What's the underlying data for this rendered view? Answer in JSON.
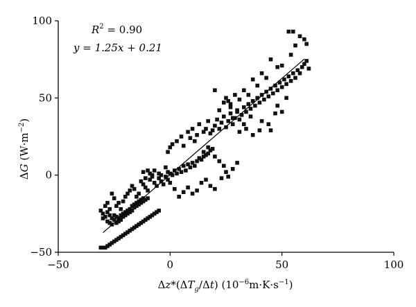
{
  "chart_data": {
    "type": "scatter",
    "xlabel": "Δz*(ΔT_g/Δt) (10^-6m·K·s^-1)",
    "ylabel": "ΔG (W·m^-2)",
    "xlim": [
      -50,
      100
    ],
    "ylim": [
      -50,
      100
    ],
    "x_ticks": [
      "−50",
      "0",
      "50",
      "100"
    ],
    "y_ticks": [
      "−50",
      "0",
      "50",
      "100"
    ],
    "grid": false,
    "annotations": {
      "r2_label": "R",
      "r2_sup": "2",
      "r2_value": " = 0.90",
      "equation": "y = 1.25x + 0.21"
    },
    "fit_line": {
      "slope": 1.25,
      "intercept": 0.21,
      "x_range": [
        -30,
        60
      ]
    },
    "points": [
      [
        -31,
        -47
      ],
      [
        -30,
        -47
      ],
      [
        -29,
        -47
      ],
      [
        -28,
        -46
      ],
      [
        -27,
        -45
      ],
      [
        -26,
        -44
      ],
      [
        -25,
        -43
      ],
      [
        -24,
        -42
      ],
      [
        -23,
        -41
      ],
      [
        -22,
        -40
      ],
      [
        -21,
        -39
      ],
      [
        -20,
        -38
      ],
      [
        -19,
        -37
      ],
      [
        -18,
        -36
      ],
      [
        -17,
        -35
      ],
      [
        -16,
        -34
      ],
      [
        -15,
        -33
      ],
      [
        -14,
        -32
      ],
      [
        -13,
        -31
      ],
      [
        -12,
        -30
      ],
      [
        -11,
        -29
      ],
      [
        -10,
        -28
      ],
      [
        -9,
        -27
      ],
      [
        -8,
        -26
      ],
      [
        -7,
        -25
      ],
      [
        -6,
        -24
      ],
      [
        -5,
        -23
      ],
      [
        -31,
        -23
      ],
      [
        -30,
        -25
      ],
      [
        -30,
        -28
      ],
      [
        -29,
        -27
      ],
      [
        -28,
        -24
      ],
      [
        -28,
        -30
      ],
      [
        -27,
        -26
      ],
      [
        -27,
        -31
      ],
      [
        -26,
        -28
      ],
      [
        -26,
        -32
      ],
      [
        -25,
        -29
      ],
      [
        -25,
        -26
      ],
      [
        -24,
        -31
      ],
      [
        -24,
        -27
      ],
      [
        -23,
        -30
      ],
      [
        -23,
        -28
      ],
      [
        -22,
        -26
      ],
      [
        -22,
        -29
      ],
      [
        -21,
        -25
      ],
      [
        -21,
        -27
      ],
      [
        -20,
        -24
      ],
      [
        -20,
        -26
      ],
      [
        -19,
        -23
      ],
      [
        -19,
        -25
      ],
      [
        -18,
        -22
      ],
      [
        -18,
        -24
      ],
      [
        -17,
        -20
      ],
      [
        -17,
        -23
      ],
      [
        -16,
        -21
      ],
      [
        -16,
        -19
      ],
      [
        -15,
        -20
      ],
      [
        -15,
        -18
      ],
      [
        -14,
        -19
      ],
      [
        -14,
        -17
      ],
      [
        -13,
        -18
      ],
      [
        -13,
        -16
      ],
      [
        -12,
        -17
      ],
      [
        -12,
        -15
      ],
      [
        -11,
        -16
      ],
      [
        -10,
        -15
      ],
      [
        -29,
        -20
      ],
      [
        -28,
        -18
      ],
      [
        -27,
        -22
      ],
      [
        -26,
        -12
      ],
      [
        -25,
        -15
      ],
      [
        -24,
        -20
      ],
      [
        -23,
        -18
      ],
      [
        -22,
        -22
      ],
      [
        -21,
        -17
      ],
      [
        -20,
        -14
      ],
      [
        -19,
        -12
      ],
      [
        -18,
        -10
      ],
      [
        -17,
        -7
      ],
      [
        -16,
        -9
      ],
      [
        -15,
        -14
      ],
      [
        -14,
        -12
      ],
      [
        -13,
        -4
      ],
      [
        -12,
        -6
      ],
      [
        -11,
        -8
      ],
      [
        -10,
        -10
      ],
      [
        -9,
        -3
      ],
      [
        -8,
        -1
      ],
      [
        -7,
        -5
      ],
      [
        -6,
        -7
      ],
      [
        -5,
        -2
      ],
      [
        -4,
        -4
      ],
      [
        -3,
        -6
      ],
      [
        -2,
        -1
      ],
      [
        -1,
        -3
      ],
      [
        0,
        -5
      ],
      [
        -12,
        2
      ],
      [
        -11,
        -2
      ],
      [
        -10,
        3
      ],
      [
        -9,
        1
      ],
      [
        -8,
        0
      ],
      [
        -7,
        3
      ],
      [
        -5,
        1
      ],
      [
        -4,
        0
      ],
      [
        -2,
        5
      ],
      [
        -1,
        2
      ],
      [
        0,
        1
      ],
      [
        1,
        0
      ],
      [
        2,
        3
      ],
      [
        3,
        1
      ],
      [
        4,
        4
      ],
      [
        5,
        2
      ],
      [
        6,
        6
      ],
      [
        7,
        3
      ],
      [
        8,
        7
      ],
      [
        9,
        5
      ],
      [
        10,
        8
      ],
      [
        11,
        6
      ],
      [
        12,
        9
      ],
      [
        13,
        11
      ],
      [
        14,
        10
      ],
      [
        15,
        12
      ],
      [
        16,
        13
      ],
      [
        17,
        14
      ],
      [
        18,
        16
      ],
      [
        19,
        17
      ],
      [
        0,
        18
      ],
      [
        1,
        20
      ],
      [
        -1,
        15
      ],
      [
        3,
        22
      ],
      [
        5,
        25
      ],
      [
        6,
        19
      ],
      [
        8,
        28
      ],
      [
        9,
        24
      ],
      [
        10,
        30
      ],
      [
        11,
        22
      ],
      [
        12,
        26
      ],
      [
        13,
        33
      ],
      [
        15,
        28
      ],
      [
        16,
        30
      ],
      [
        17,
        35
      ],
      [
        18,
        27
      ],
      [
        19,
        29
      ],
      [
        20,
        32
      ],
      [
        21,
        36
      ],
      [
        22,
        30
      ],
      [
        23,
        34
      ],
      [
        24,
        38
      ],
      [
        25,
        31
      ],
      [
        26,
        35
      ],
      [
        27,
        40
      ],
      [
        28,
        33
      ],
      [
        29,
        37
      ],
      [
        30,
        42
      ],
      [
        31,
        36
      ],
      [
        32,
        39
      ],
      [
        33,
        44
      ],
      [
        34,
        41
      ],
      [
        35,
        46
      ],
      [
        36,
        43
      ],
      [
        37,
        48
      ],
      [
        38,
        45
      ],
      [
        39,
        50
      ],
      [
        40,
        47
      ],
      [
        41,
        52
      ],
      [
        42,
        49
      ],
      [
        43,
        54
      ],
      [
        44,
        51
      ],
      [
        45,
        56
      ],
      [
        46,
        53
      ],
      [
        47,
        58
      ],
      [
        48,
        55
      ],
      [
        49,
        60
      ],
      [
        50,
        57
      ],
      [
        51,
        62
      ],
      [
        52,
        59
      ],
      [
        53,
        64
      ],
      [
        54,
        61
      ],
      [
        55,
        66
      ],
      [
        56,
        63
      ],
      [
        57,
        68
      ],
      [
        58,
        66
      ],
      [
        59,
        70
      ],
      [
        60,
        72
      ],
      [
        61,
        74
      ],
      [
        62,
        69
      ],
      [
        20,
        55
      ],
      [
        24,
        47
      ],
      [
        27,
        44
      ],
      [
        30,
        41
      ],
      [
        33,
        33
      ],
      [
        36,
        38
      ],
      [
        40,
        29
      ],
      [
        44,
        33
      ],
      [
        47,
        40
      ],
      [
        50,
        41
      ],
      [
        22,
        42
      ],
      [
        26,
        48
      ],
      [
        28,
        37
      ],
      [
        31,
        28
      ],
      [
        34,
        30
      ],
      [
        37,
        26
      ],
      [
        41,
        35
      ],
      [
        45,
        29
      ],
      [
        48,
        45
      ],
      [
        52,
        50
      ],
      [
        15,
        15
      ],
      [
        17,
        18
      ],
      [
        20,
        12
      ],
      [
        22,
        9
      ],
      [
        24,
        6
      ],
      [
        14,
        -5
      ],
      [
        16,
        -3
      ],
      [
        18,
        -7
      ],
      [
        20,
        -9
      ],
      [
        23,
        -2
      ],
      [
        25,
        2
      ],
      [
        26,
        -1
      ],
      [
        28,
        4
      ],
      [
        30,
        8
      ],
      [
        12,
        -10
      ],
      [
        10,
        -12
      ],
      [
        8,
        -8
      ],
      [
        6,
        -11
      ],
      [
        4,
        -14
      ],
      [
        2,
        -9
      ],
      [
        53,
        93
      ],
      [
        55,
        93
      ],
      [
        58,
        90
      ],
      [
        60,
        88
      ],
      [
        61,
        85
      ],
      [
        56,
        84
      ],
      [
        54,
        78
      ],
      [
        50,
        71
      ],
      [
        48,
        70
      ],
      [
        45,
        75
      ],
      [
        43,
        63
      ],
      [
        41,
        66
      ],
      [
        39,
        58
      ],
      [
        37,
        62
      ],
      [
        35,
        52
      ],
      [
        33,
        55
      ],
      [
        31,
        49
      ],
      [
        29,
        52
      ],
      [
        27,
        46
      ],
      [
        25,
        50
      ]
    ]
  }
}
